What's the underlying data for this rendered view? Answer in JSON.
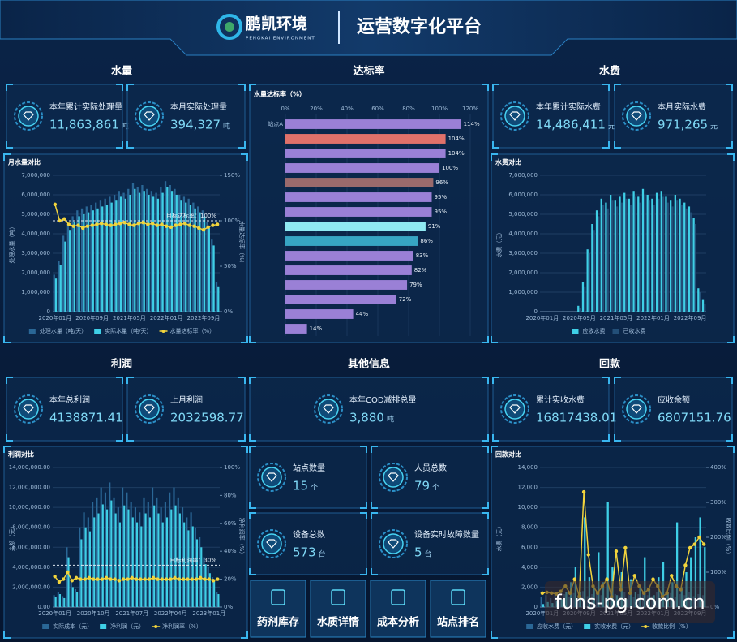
{
  "header": {
    "brand": "鹏凯环境",
    "brand_en": "PENGKAI ENVIRONMENT",
    "title": "运营数字化平台"
  },
  "sections": {
    "water": "水量",
    "rate": "达标率",
    "fee": "水费",
    "profit": "利润",
    "other": "其他信息",
    "payment": "回款"
  },
  "cards": {
    "water_year": {
      "label": "本年累计实际处理量",
      "value": "11,863,861",
      "unit": "吨"
    },
    "water_month": {
      "label": "本月实际处理量",
      "value": "394,327",
      "unit": "吨"
    },
    "fee_year": {
      "label": "本年累计实际水费",
      "value": "14,486,411",
      "unit": "元"
    },
    "fee_month": {
      "label": "本月实际水费",
      "value": "971,265",
      "unit": "元"
    },
    "profit_year": {
      "label": "本年总利润",
      "value": "4138871.41"
    },
    "profit_month": {
      "label": "上月利润",
      "value": "2032598.77"
    },
    "cod": {
      "label": "本年COD减排总量",
      "value": "3,880",
      "unit": "吨"
    },
    "sites": {
      "label": "站点数量",
      "value": "15",
      "unit": "个"
    },
    "staff": {
      "label": "人员总数",
      "value": "79",
      "unit": "个"
    },
    "devices": {
      "label": "设备总数",
      "value": "573",
      "unit": "台"
    },
    "faults": {
      "label": "设备实时故障数量",
      "value": "5",
      "unit": "台"
    },
    "paid": {
      "label": "累计实收水费",
      "value": "16817438.01"
    },
    "balance": {
      "label": "应收余额",
      "value": "6807151.76"
    }
  },
  "buttons": [
    "药剂库存",
    "水质详情",
    "成本分析",
    "站点排名"
  ],
  "watermark": "funs-pg.com.cn",
  "chart_data": [
    {
      "type": "combo",
      "title": "月水量对比",
      "ylabel": "处理水量（吨）",
      "y2label": "水量达标率（%）",
      "categories": [
        "2020年01月",
        null,
        null,
        null,
        null,
        null,
        null,
        null,
        "2020年09月",
        null,
        null,
        null,
        null,
        null,
        null,
        null,
        "2021年05月",
        null,
        null,
        null,
        null,
        null,
        null,
        null,
        "2022年01月",
        null,
        null,
        null,
        null,
        null,
        null,
        null,
        "2022年09月",
        null,
        null,
        null
      ],
      "ylim": [
        0,
        7000000
      ],
      "yticks": [
        0,
        {
          "value": 1000000,
          "label": "1,000,000"
        },
        {
          "value": 2000000,
          "label": "2,000,000"
        },
        {
          "value": 3000000,
          "label": "3,000,000"
        },
        {
          "value": 4000000,
          "label": "4,000,000"
        },
        {
          "value": 5000000,
          "label": "5,000,000"
        },
        {
          "value": 6000000,
          "label": "6,000,000"
        },
        {
          "value": 7000000,
          "label": "7,000,000"
        }
      ],
      "y2lim": [
        0,
        150
      ],
      "y2ticks": [
        {
          "value": 0,
          "label": "0%"
        },
        {
          "value": 50,
          "label": "50%"
        },
        {
          "value": 100,
          "label": "100%"
        },
        {
          "value": 150,
          "label": "150%"
        }
      ],
      "annotation": {
        "text": "目标达标率：100%",
        "value": 100,
        "axis": "y2"
      },
      "series": [
        {
          "name": "处理水量（吨/天）",
          "type": "bar",
          "color": "#2a6796",
          "values": [
            1900000,
            2600000,
            3900000,
            4500000,
            4900000,
            5200000,
            5300000,
            5400000,
            5500000,
            5600000,
            5700000,
            5800000,
            5900000,
            6000000,
            6200000,
            6100000,
            6300000,
            6600000,
            6400000,
            6500000,
            6300000,
            6200000,
            6100000,
            6400000,
            6700000,
            6500000,
            6300000,
            6000000,
            5900000,
            5800000,
            5600000,
            5400000,
            5200000,
            4600000,
            3700000,
            1500000
          ]
        },
        {
          "name": "实际水量（吨/天）",
          "type": "bar",
          "color": "#3fcfe6",
          "values": [
            1700000,
            2400000,
            3600000,
            4200000,
            4600000,
            4900000,
            5000000,
            5100000,
            5200000,
            5300000,
            5400000,
            5500000,
            5600000,
            5700000,
            5900000,
            5800000,
            6000000,
            6300000,
            6100000,
            6200000,
            6000000,
            5900000,
            5800000,
            6100000,
            6400000,
            6200000,
            6000000,
            5700000,
            5600000,
            5500000,
            5300000,
            5100000,
            4900000,
            4300000,
            3400000,
            1300000
          ]
        },
        {
          "name": "水量达标率（%）",
          "type": "line",
          "axis": "y2",
          "color": "#f2d43c",
          "values": [
            118,
            100,
            102,
            96,
            94,
            95,
            92,
            94,
            95,
            96,
            97,
            96,
            95,
            96,
            97,
            98,
            96,
            95,
            97,
            98,
            96,
            97,
            95,
            96,
            94,
            93,
            95,
            96,
            97,
            95,
            94,
            92,
            90,
            93,
            95,
            96
          ]
        }
      ]
    },
    {
      "type": "hbar",
      "title": "水量达标率（%）",
      "categories": [
        "站点A",
        null,
        null,
        null,
        null,
        null,
        null,
        null,
        null,
        null,
        null,
        null,
        null,
        null,
        null
      ],
      "values": [
        114,
        104,
        104,
        100,
        96,
        95,
        95,
        91,
        86,
        83,
        82,
        79,
        72,
        44,
        14
      ],
      "value_labels": [
        "114%",
        "104%",
        "104%",
        "100%",
        "96%",
        "95%",
        "95%",
        "91%",
        "86%",
        "83%",
        "82%",
        "79%",
        "72%",
        "44%",
        "14%"
      ],
      "colors": [
        "#9a80d6",
        "#e0716a",
        "#9a80d6",
        "#9a80d6",
        "#9a6a6c",
        "#9a80d6",
        "#9a80d6",
        "#8fe9f2",
        "#37a5c3",
        "#9a80d6",
        "#9a80d6",
        "#9a80d6",
        "#9a80d6",
        "#9a80d6",
        "#9a80d6"
      ],
      "xlim": [
        0,
        120
      ],
      "xticks": [
        {
          "value": 0,
          "label": "0%"
        },
        {
          "value": 20,
          "label": "20%"
        },
        {
          "value": 40,
          "label": "40%"
        },
        {
          "value": 60,
          "label": "60%"
        },
        {
          "value": 80,
          "label": "80%"
        },
        {
          "value": 100,
          "label": "100%"
        },
        {
          "value": 120,
          "label": "120%"
        }
      ]
    },
    {
      "type": "combo",
      "title": "水费对比",
      "ylabel": "水费（元）",
      "categories": [
        "2020年01月",
        null,
        null,
        null,
        null,
        null,
        null,
        null,
        "2020年09月",
        null,
        null,
        null,
        null,
        null,
        null,
        null,
        "2021年05月",
        null,
        null,
        null,
        null,
        null,
        null,
        null,
        "2022年01月",
        null,
        null,
        null,
        null,
        null,
        null,
        null,
        "2022年09月",
        null,
        null,
        null
      ],
      "ylim": [
        0,
        7000000
      ],
      "yticks": [
        0,
        {
          "value": 1000000,
          "label": "1,000,000"
        },
        {
          "value": 2000000,
          "label": "2,000,000"
        },
        {
          "value": 3000000,
          "label": "3,000,000"
        },
        {
          "value": 4000000,
          "label": "4,000,000"
        },
        {
          "value": 5000000,
          "label": "5,000,000"
        },
        {
          "value": 6000000,
          "label": "6,000,000"
        },
        {
          "value": 7000000,
          "label": "7,000,000"
        }
      ],
      "series": [
        {
          "name": "应收水费",
          "type": "bar",
          "color": "#3fcfe6",
          "values": [
            0,
            0,
            0,
            0,
            0,
            0,
            0,
            0,
            300000,
            1500000,
            3200000,
            4500000,
            5200000,
            5800000,
            5600000,
            6000000,
            5700000,
            5900000,
            6100000,
            5800000,
            6200000,
            5900000,
            6300000,
            6000000,
            5800000,
            6100000,
            6200000,
            5900000,
            5700000,
            6000000,
            5800000,
            5600000,
            5400000,
            4800000,
            1200000,
            600000
          ]
        },
        {
          "name": "已收水费",
          "type": "bar",
          "color": "#234f78",
          "values": [
            0,
            0,
            0,
            0,
            0,
            0,
            0,
            0,
            200000,
            1300000,
            3000000,
            4200000,
            4900000,
            5500000,
            5300000,
            5700000,
            5400000,
            5600000,
            5800000,
            5500000,
            5900000,
            5600000,
            6000000,
            5700000,
            5500000,
            5800000,
            5900000,
            5600000,
            5400000,
            5700000,
            5500000,
            5300000,
            5100000,
            4500000,
            1000000,
            400000
          ]
        }
      ]
    },
    {
      "type": "combo",
      "title": "利润对比",
      "ylabel": "金额（元）",
      "y2label": "净利润率（%）",
      "categories": [
        "2020年01月",
        null,
        null,
        null,
        null,
        null,
        null,
        null,
        null,
        "2020年10月",
        null,
        null,
        null,
        null,
        null,
        null,
        null,
        null,
        "2021年07月",
        null,
        null,
        null,
        null,
        null,
        null,
        null,
        null,
        "2022年04月",
        null,
        null,
        null,
        null,
        null,
        null,
        null,
        null,
        "2023年01月",
        null,
        null
      ],
      "ylim": [
        0,
        14000000
      ],
      "yticks": [
        {
          "value": 0,
          "label": "0.00"
        },
        {
          "value": 2000000,
          "label": "2,000,000.00"
        },
        {
          "value": 4000000,
          "label": "4,000,000.00"
        },
        {
          "value": 6000000,
          "label": "6,000,000.00"
        },
        {
          "value": 8000000,
          "label": "8,000,000.00"
        },
        {
          "value": 10000000,
          "label": "10,000,000.00"
        },
        {
          "value": 12000000,
          "label": "12,000,000.00"
        },
        {
          "value": 14000000,
          "label": "14,000,000.00"
        }
      ],
      "y2lim": [
        0,
        100
      ],
      "y2ticks": [
        {
          "value": 0,
          "label": "0%"
        },
        {
          "value": 20,
          "label": "20%"
        },
        {
          "value": 40,
          "label": "40%"
        },
        {
          "value": 60,
          "label": "60%"
        },
        {
          "value": 80,
          "label": "80%"
        },
        {
          "value": 100,
          "label": "100%"
        }
      ],
      "annotation": {
        "text": "目标利润率：30%",
        "value": 30,
        "axis": "y2"
      },
      "series": [
        {
          "name": "实际成本（元）",
          "type": "bar",
          "color": "#2a6796",
          "values": [
            1200000,
            1500000,
            1100000,
            6000000,
            2500000,
            1800000,
            8000000,
            9500000,
            9000000,
            10500000,
            11000000,
            12000000,
            11500000,
            12500000,
            11000000,
            10000000,
            12000000,
            11500000,
            10500000,
            10000000,
            9500000,
            11000000,
            10500000,
            12000000,
            11000000,
            10000000,
            10500000,
            11500000,
            12000000,
            11000000,
            10000000,
            9000000,
            9500000,
            8000000,
            7000000,
            5000000,
            4000000,
            3000000,
            1500000
          ]
        },
        {
          "name": "净利润（元）",
          "type": "bar",
          "color": "#3fcfe6",
          "values": [
            1000000,
            1300000,
            900000,
            5000000,
            2000000,
            1500000,
            6800000,
            8000000,
            7600000,
            9000000,
            9400000,
            10300000,
            9800000,
            10700000,
            9400000,
            8500000,
            10200000,
            9800000,
            9000000,
            8500000,
            8100000,
            9400000,
            9000000,
            10200000,
            9400000,
            8500000,
            9000000,
            9800000,
            10200000,
            9400000,
            8500000,
            7700000,
            8100000,
            6800000,
            6000000,
            4300000,
            3400000,
            2600000,
            1300000
          ]
        },
        {
          "name": "净利润率（%）",
          "type": "line",
          "axis": "y2",
          "color": "#f2d43c",
          "values": [
            22,
            18,
            20,
            25,
            19,
            21,
            20,
            20,
            21,
            20,
            20,
            20,
            21,
            20,
            20,
            19,
            20,
            20,
            21,
            20,
            20,
            20,
            20,
            21,
            20,
            20,
            20,
            20,
            21,
            20,
            20,
            20,
            20,
            20,
            21,
            20,
            20,
            19,
            20
          ]
        }
      ]
    },
    {
      "type": "combo",
      "title": "回款对比",
      "ylabel": "水费（元）",
      "y2label": "收款比例（%）",
      "categories": [
        "2020年01月",
        null,
        null,
        null,
        null,
        null,
        null,
        null,
        "2020年09月",
        null,
        null,
        null,
        null,
        null,
        null,
        null,
        "2021年05月",
        null,
        null,
        null,
        null,
        null,
        null,
        null,
        "2022年01月",
        null,
        null,
        null,
        null,
        null,
        null,
        null,
        "2022年09月",
        null,
        null,
        null
      ],
      "ylim": [
        0,
        14000
      ],
      "yticks": [
        0,
        {
          "value": 2000,
          "label": "2,000"
        },
        {
          "value": 4000,
          "label": "4,000"
        },
        {
          "value": 6000,
          "label": "6,000"
        },
        {
          "value": 8000,
          "label": "8,000"
        },
        {
          "value": 10000,
          "label": "10,000"
        },
        {
          "value": 12000,
          "label": "12,000"
        },
        {
          "value": 14000,
          "label": "14,000"
        }
      ],
      "y2lim": [
        0,
        400
      ],
      "y2ticks": [
        {
          "value": 0,
          "label": "0%"
        },
        {
          "value": 100,
          "label": "100%"
        },
        {
          "value": 200,
          "label": "200%"
        },
        {
          "value": 300,
          "label": "300%"
        },
        {
          "value": 400,
          "label": "400%"
        }
      ],
      "series": [
        {
          "name": "应收水费（元）",
          "type": "bar",
          "color": "#2a6796",
          "values": [
            1000,
            1200,
            900,
            1500,
            1100,
            1300,
            1000,
            1400,
            1200,
            1600,
            1100,
            1300,
            1500,
            1200,
            1000,
            1400,
            1300,
            1100,
            1500,
            1200,
            1000,
            1300,
            1400,
            1200,
            1100,
            1500,
            1300,
            1200,
            1400,
            1000,
            1300,
            1200,
            1500,
            1100,
            1300,
            1200
          ]
        },
        {
          "name": "实收水费（元）",
          "type": "bar",
          "color": "#3fcfe6",
          "values": [
            300,
            500,
            400,
            600,
            800,
            1500,
            2500,
            4000,
            1500,
            9000,
            3000,
            2000,
            5500,
            2500,
            10500,
            4000,
            1200,
            3500,
            800,
            2800,
            1500,
            2200,
            5000,
            1800,
            1200,
            3000,
            4500,
            1500,
            2500,
            8500,
            2000,
            3500,
            5000,
            7000,
            9000,
            6000
          ]
        },
        {
          "name": "收款比例（%）",
          "type": "line",
          "axis": "y2",
          "color": "#f2d43c",
          "values": [
            40,
            42,
            40,
            38,
            45,
            60,
            40,
            80,
            30,
            330,
            150,
            60,
            40,
            60,
            80,
            30,
            160,
            50,
            170,
            40,
            90,
            60,
            40,
            50,
            80,
            60,
            30,
            40,
            90,
            60,
            50,
            120,
            170,
            180,
            200,
            180
          ]
        }
      ]
    }
  ]
}
